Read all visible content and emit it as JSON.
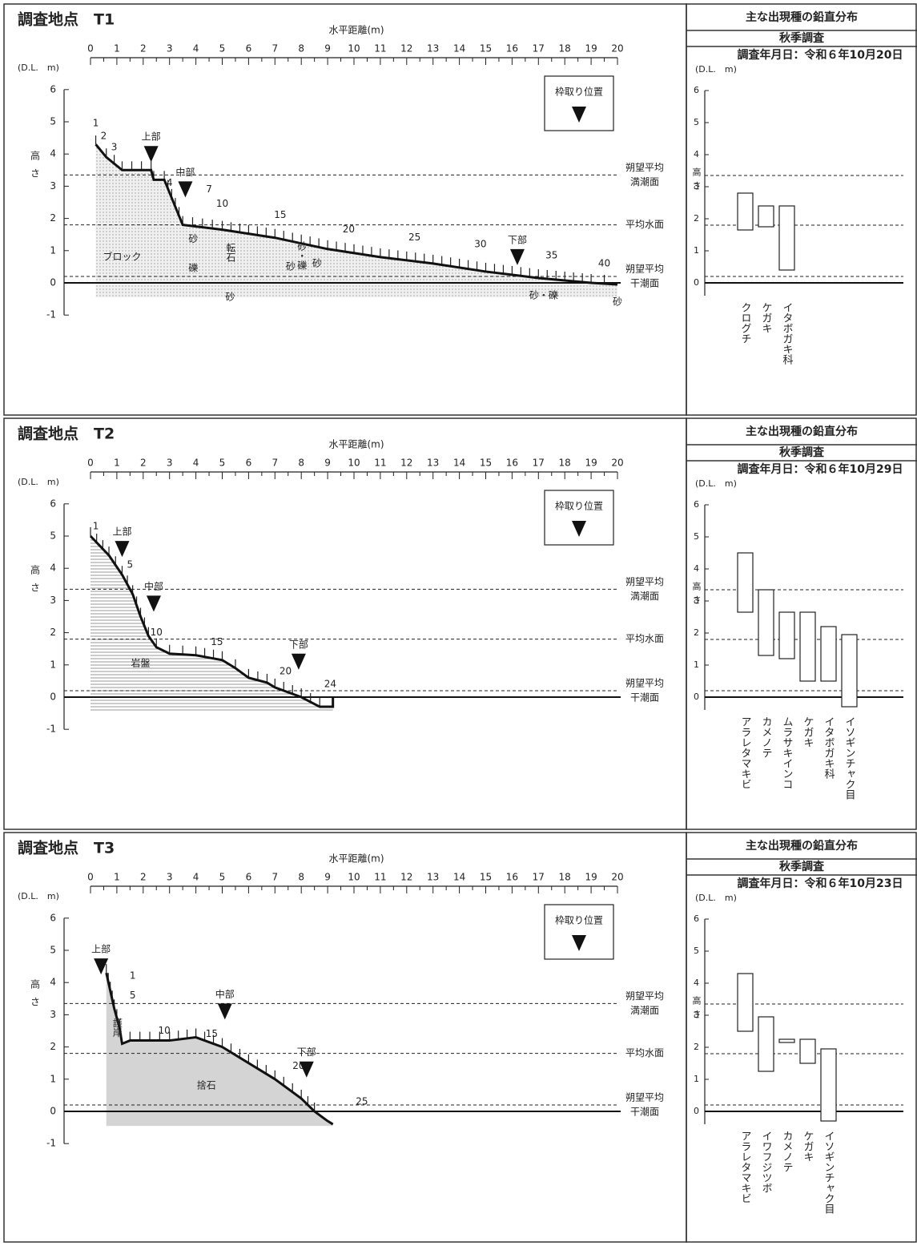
{
  "panels": [
    {
      "title": "調査地点　T1",
      "profile": {
        "x_label": "水平距離(m)",
        "xlim": [
          0,
          20
        ],
        "xticks": [
          0,
          1,
          2,
          3,
          4,
          5,
          6,
          7,
          8,
          9,
          10,
          11,
          12,
          13,
          14,
          15,
          16,
          17,
          18,
          19,
          20
        ],
        "y_unit": "(D.L.　m)",
        "y_label": "高さ",
        "ylim": [
          -1,
          6
        ],
        "yticks": [
          6,
          5,
          4,
          3,
          2,
          1,
          0,
          -1
        ],
        "x": [
          0.2,
          0.6,
          1.2,
          2.3,
          2.4,
          2.8,
          3.5,
          5,
          7,
          9,
          11,
          13,
          15,
          17,
          19,
          20
        ],
        "y": [
          4.3,
          3.9,
          3.5,
          3.5,
          3.2,
          3.2,
          1.8,
          1.65,
          1.4,
          1.05,
          0.8,
          0.6,
          0.35,
          0.15,
          0.0,
          -0.05
        ],
        "stations": [
          {
            "text": "1",
            "x": 0.2,
            "y": 4.95
          },
          {
            "text": "2",
            "x": 0.5,
            "y": 4.55
          },
          {
            "text": "3",
            "x": 0.9,
            "y": 4.2
          },
          {
            "text": "4",
            "x": 3.0,
            "y": 3.1
          },
          {
            "text": "7",
            "x": 4.5,
            "y": 2.9
          },
          {
            "text": "10",
            "x": 5.0,
            "y": 2.45
          },
          {
            "text": "15",
            "x": 7.2,
            "y": 2.1
          },
          {
            "text": "20",
            "x": 9.8,
            "y": 1.65
          },
          {
            "text": "25",
            "x": 12.3,
            "y": 1.4
          },
          {
            "text": "30",
            "x": 14.8,
            "y": 1.2
          },
          {
            "text": "35",
            "x": 17.5,
            "y": 0.85
          },
          {
            "text": "40",
            "x": 19.5,
            "y": 0.6
          }
        ],
        "zones": [
          {
            "label": "上部",
            "x": 2.3,
            "y": 4.0
          },
          {
            "label": "中部",
            "x": 3.6,
            "y": 2.9
          },
          {
            "label": "下部",
            "x": 16.2,
            "y": 0.8
          }
        ],
        "substrates": [
          {
            "text": "ブロック",
            "x": 1.2,
            "y": 0.8,
            "vertical": false
          },
          {
            "text": "砂",
            "x": 3.9,
            "y": 1.35,
            "vertical": false
          },
          {
            "text": "礫",
            "x": 3.9,
            "y": 0.45,
            "vertical": false
          },
          {
            "text": "転石",
            "x": 5.3,
            "y": 0.95,
            "vertical": true
          },
          {
            "text": "砂",
            "x": 5.3,
            "y": -0.45,
            "vertical": false
          },
          {
            "text": "砂",
            "x": 7.6,
            "y": 0.5,
            "vertical": false
          },
          {
            "text": "砂・礫",
            "x": 8.0,
            "y": 1.0,
            "vertical": true
          },
          {
            "text": "砂",
            "x": 8.6,
            "y": 0.6,
            "vertical": false
          },
          {
            "text": "砂・礫",
            "x": 17.2,
            "y": -0.4,
            "vertical": false
          },
          {
            "text": "砂",
            "x": 20.0,
            "y": -0.6,
            "vertical": false
          }
        ],
        "frame_label": "枠取り位置",
        "levels": [
          {
            "label": [
              "朔望平均",
              "満潮面"
            ],
            "value": 3.35
          },
          {
            "label": [
              "平均水面"
            ],
            "value": 1.8
          },
          {
            "label": [
              "朔望平均",
              "干潮面"
            ],
            "value": 0.2
          }
        ]
      },
      "distribution": {
        "title": "主な出現種の鉛直分布",
        "season": "秋季調査",
        "date": "調査年月日：令和６年10月20日",
        "y_unit": "(D.L.　m)",
        "y_label": "高さ",
        "ylim": [
          -1,
          6
        ],
        "yticks": [
          6,
          5,
          4,
          3,
          2,
          1,
          0
        ],
        "species": [
          {
            "name": "クログチ",
            "top": 2.8,
            "bottom": 1.65
          },
          {
            "name": "ケガキ",
            "top": 2.4,
            "bottom": 1.75
          },
          {
            "name": "イタボガキ科",
            "top": 2.4,
            "bottom": 0.4
          }
        ]
      }
    },
    {
      "title": "調査地点　T2",
      "profile": {
        "x_label": "水平距離(m)",
        "xlim": [
          0,
          20
        ],
        "xticks": [
          0,
          1,
          2,
          3,
          4,
          5,
          6,
          7,
          8,
          9,
          10,
          11,
          12,
          13,
          14,
          15,
          16,
          17,
          18,
          19,
          20
        ],
        "y_unit": "(D.L.　m)",
        "y_label": "高さ",
        "ylim": [
          -1,
          6
        ],
        "yticks": [
          6,
          5,
          4,
          3,
          2,
          1,
          0,
          -1
        ],
        "x": [
          0,
          0.7,
          1.2,
          1.6,
          1.9,
          2.2,
          2.5,
          3,
          4,
          5,
          5.5,
          6,
          6.7,
          7,
          8,
          8.7,
          9.2,
          9.2
        ],
        "y": [
          5.0,
          4.4,
          3.8,
          3.2,
          2.5,
          1.9,
          1.55,
          1.35,
          1.3,
          1.15,
          0.9,
          0.6,
          0.45,
          0.3,
          0.0,
          -0.3,
          -0.3,
          0
        ],
        "stations": [
          {
            "text": "1",
            "x": 0.2,
            "y": 5.3
          },
          {
            "text": "5",
            "x": 1.5,
            "y": 4.1
          },
          {
            "text": "10",
            "x": 2.5,
            "y": 2.0
          },
          {
            "text": "15",
            "x": 4.8,
            "y": 1.7
          },
          {
            "text": "20",
            "x": 7.4,
            "y": 0.8
          },
          {
            "text": "24",
            "x": 9.1,
            "y": 0.4
          }
        ],
        "zones": [
          {
            "label": "上部",
            "x": 1.2,
            "y": 4.6
          },
          {
            "label": "中部",
            "x": 2.4,
            "y": 2.9
          },
          {
            "label": "下部",
            "x": 7.9,
            "y": 1.1
          }
        ],
        "substrates": [
          {
            "text": "岩盤",
            "x": 1.9,
            "y": 1.05,
            "vertical": false
          }
        ],
        "frame_label": "枠取り位置",
        "levels": [
          {
            "label": [
              "朔望平均",
              "満潮面"
            ],
            "value": 3.35
          },
          {
            "label": [
              "平均水面"
            ],
            "value": 1.8
          },
          {
            "label": [
              "朔望平均",
              "干潮面"
            ],
            "value": 0.2
          }
        ]
      },
      "distribution": {
        "title": "主な出現種の鉛直分布",
        "season": "秋季調査",
        "date": "調査年月日：令和６年10月29日",
        "y_unit": "(D.L.　m)",
        "y_label": "高さ",
        "ylim": [
          -1,
          6
        ],
        "yticks": [
          6,
          5,
          4,
          3,
          2,
          1,
          0
        ],
        "species": [
          {
            "name": "アラレタマキビ",
            "top": 4.5,
            "bottom": 2.65
          },
          {
            "name": "カメノテ",
            "top": 3.35,
            "bottom": 1.3
          },
          {
            "name": "ムラサキインコ",
            "top": 2.65,
            "bottom": 1.2
          },
          {
            "name": "ケガキ",
            "top": 2.65,
            "bottom": 0.5
          },
          {
            "name": "イタボガキ科",
            "top": 2.2,
            "bottom": 0.5
          },
          {
            "name": "イソギンチャク目",
            "top": 1.95,
            "bottom": -0.3
          }
        ]
      }
    },
    {
      "title": "調査地点　T3",
      "profile": {
        "x_label": "水平距離(m)",
        "xlim": [
          0,
          20
        ],
        "xticks": [
          0,
          1,
          2,
          3,
          4,
          5,
          6,
          7,
          8,
          9,
          10,
          11,
          12,
          13,
          14,
          15,
          16,
          17,
          18,
          19,
          20
        ],
        "y_unit": "(D.L.　m)",
        "y_label": "高さ",
        "ylim": [
          -1,
          6
        ],
        "yticks": [
          6,
          5,
          4,
          3,
          2,
          1,
          0,
          -1
        ],
        "x": [
          0.6,
          0.9,
          1.1,
          1.2,
          1.5,
          3,
          4,
          5,
          6,
          7,
          8,
          8.5,
          9,
          9.2
        ],
        "y": [
          4.3,
          3.2,
          2.6,
          2.1,
          2.2,
          2.2,
          2.3,
          2.0,
          1.5,
          1.0,
          0.4,
          0.0,
          -0.3,
          -0.4
        ],
        "stations": [
          {
            "text": "1",
            "x": 1.6,
            "y": 4.2
          },
          {
            "text": "5",
            "x": 1.6,
            "y": 3.6
          },
          {
            "text": "10",
            "x": 2.8,
            "y": 2.5
          },
          {
            "text": "15",
            "x": 4.6,
            "y": 2.4
          },
          {
            "text": "20",
            "x": 7.9,
            "y": 1.4
          },
          {
            "text": "25",
            "x": 10.3,
            "y": 0.3
          }
        ],
        "zones": [
          {
            "label": "上部",
            "x": 0.4,
            "y": 4.5
          },
          {
            "label": "中部",
            "x": 5.1,
            "y": 3.1
          },
          {
            "label": "下部",
            "x": 8.2,
            "y": 1.3
          }
        ],
        "substrates": [
          {
            "text": "護岸",
            "x": 1.0,
            "y": 2.6,
            "vertical": true
          },
          {
            "text": "捨石",
            "x": 4.4,
            "y": 0.8,
            "vertical": false
          }
        ],
        "frame_label": "枠取り位置",
        "levels": [
          {
            "label": [
              "朔望平均",
              "満潮面"
            ],
            "value": 3.35
          },
          {
            "label": [
              "平均水面"
            ],
            "value": 1.8
          },
          {
            "label": [
              "朔望平均",
              "干潮面"
            ],
            "value": 0.2
          }
        ]
      },
      "distribution": {
        "title": "主な出現種の鉛直分布",
        "season": "秋季調査",
        "date": "調査年月日：令和６年10月23日",
        "y_unit": "(D.L.　m)",
        "y_label": "高さ",
        "ylim": [
          -1,
          6
        ],
        "yticks": [
          6,
          5,
          4,
          3,
          2,
          1,
          0
        ],
        "species": [
          {
            "name": "アラレタマキビ",
            "top": 4.3,
            "bottom": 2.5
          },
          {
            "name": "イワフジツボ",
            "top": 2.95,
            "bottom": 1.25
          },
          {
            "name": "カメノテ",
            "top": 2.25,
            "bottom": 2.15
          },
          {
            "name": "ケガキ",
            "top": 2.25,
            "bottom": 1.5
          },
          {
            "name": "イソギンチャク目",
            "top": 1.95,
            "bottom": -0.3
          }
        ]
      }
    }
  ]
}
